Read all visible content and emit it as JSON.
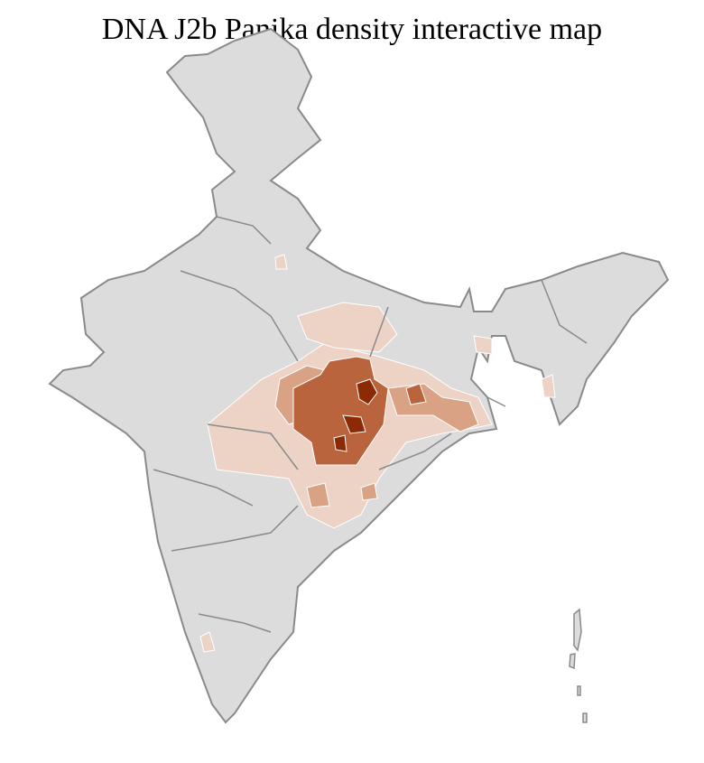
{
  "title": "DNA J2b Panika density interactive map",
  "colors": {
    "background": "#ffffff",
    "no_data": "#dcdcdc",
    "district_border": "#ffffff",
    "state_border": "#8a8a8a",
    "density_low": "#ecd3c6",
    "density_medium": "#d9a285",
    "density_high": "#b9643c",
    "density_max": "#8b2a05"
  }
}
